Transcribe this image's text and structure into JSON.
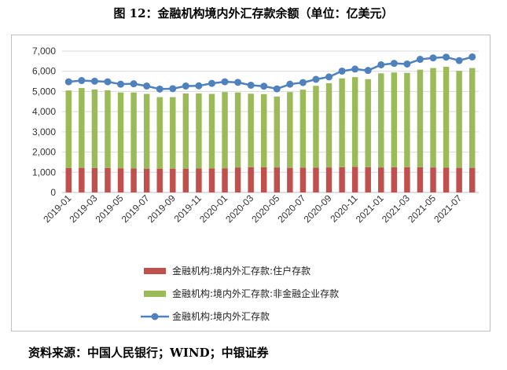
{
  "title": "图 12：金融机构境内外汇存款余额（单位：亿美元）",
  "source": "资料来源：中国人民银行；WIND；中银证券",
  "chart_data": {
    "type": "bar",
    "stacked": true,
    "title": "",
    "xlabel": "",
    "ylabel": "",
    "ylim": [
      0,
      7000
    ],
    "yticks": [
      "0",
      "1,000",
      "2,000",
      "3,000",
      "4,000",
      "5,000",
      "6,000",
      "7,000"
    ],
    "grid": true,
    "legend_position": "bottom",
    "categories": [
      "2019-01",
      "2019-02",
      "2019-03",
      "2019-04",
      "2019-05",
      "2019-06",
      "2019-07",
      "2019-08",
      "2019-09",
      "2019-10",
      "2019-11",
      "2019-12",
      "2020-01",
      "2020-02",
      "2020-03",
      "2020-04",
      "2020-05",
      "2020-06",
      "2020-07",
      "2020-08",
      "2020-09",
      "2020-10",
      "2020-11",
      "2020-12",
      "2021-01",
      "2021-02",
      "2021-03",
      "2021-04",
      "2021-05",
      "2021-06",
      "2021-07",
      "2021-08"
    ],
    "xtick_labels": [
      "2019-01",
      "2019-03",
      "2019-05",
      "2019-07",
      "2019-09",
      "2019-11",
      "2020-01",
      "2020-03",
      "2020-05",
      "2020-07",
      "2020-09",
      "2020-11",
      "2021-01",
      "2021-03",
      "2021-05",
      "2021-07"
    ],
    "series": [
      {
        "name": "金融机构:境内外汇存款:住户存款",
        "kind": "bar",
        "color": "#c0504d",
        "values": [
          1210,
          1220,
          1210,
          1210,
          1200,
          1190,
          1180,
          1180,
          1180,
          1180,
          1190,
          1190,
          1200,
          1240,
          1250,
          1250,
          1240,
          1220,
          1230,
          1230,
          1240,
          1250,
          1270,
          1250,
          1240,
          1250,
          1250,
          1250,
          1240,
          1230,
          1220,
          1220
        ]
      },
      {
        "name": "金融机构:境内外汇存款:非金融企业存款",
        "kind": "bar",
        "color": "#9bbb59",
        "values": [
          3840,
          3950,
          3890,
          3850,
          3750,
          3760,
          3700,
          3540,
          3540,
          3720,
          3710,
          3690,
          3770,
          3710,
          3640,
          3620,
          3510,
          3750,
          3860,
          4050,
          4170,
          4400,
          4440,
          4360,
          4660,
          4690,
          4670,
          4830,
          4920,
          4990,
          4800,
          4940
        ]
      },
      {
        "name": "金融机构:境内外汇存款",
        "kind": "line",
        "color": "#4f81bd",
        "values": [
          5480,
          5540,
          5510,
          5480,
          5360,
          5380,
          5270,
          5120,
          5140,
          5270,
          5280,
          5400,
          5480,
          5450,
          5310,
          5260,
          5130,
          5360,
          5440,
          5600,
          5720,
          6010,
          6110,
          6040,
          6320,
          6390,
          6360,
          6590,
          6660,
          6700,
          6530,
          6710
        ]
      }
    ]
  }
}
